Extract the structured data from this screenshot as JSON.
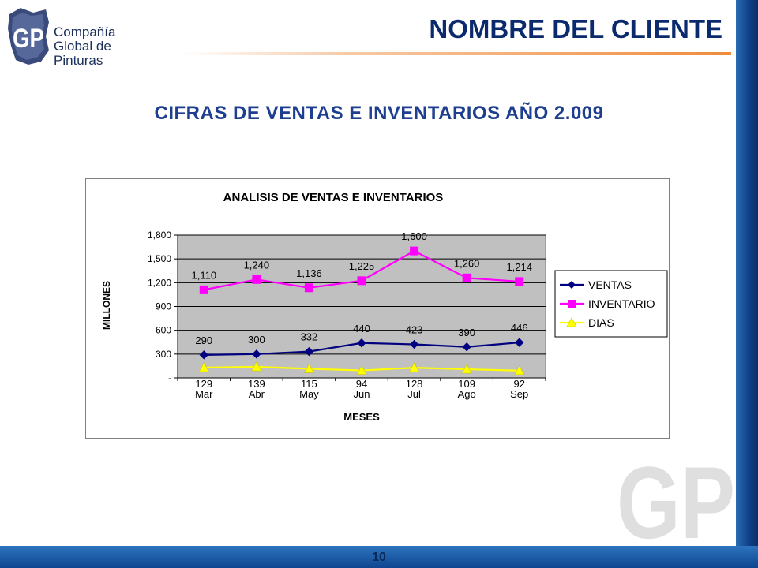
{
  "brand": {
    "logo_initials": "GP",
    "name_line1": "Compañía",
    "name_line2": "Global de Pinturas",
    "watermark_initials": "GP"
  },
  "header": {
    "title": "NOMBRE DEL CLIENTE"
  },
  "subtitle": "CIFRAS DE VENTAS E INVENTARIOS AÑO 2.009",
  "footer": {
    "page_number": "10"
  },
  "colors": {
    "ventas": "#000080",
    "inventario": "#FF00FF",
    "dias": "#FFFF00",
    "plot_bg": "#C0C0C0",
    "title_blue": "#0b2a6e",
    "accent_orange": "#f08c3c"
  },
  "chart_data": {
    "type": "line",
    "title": "ANALISIS DE VENTAS E INVENTARIOS",
    "xlabel": "MESES",
    "ylabel": "MILLONES",
    "categories": [
      "Mar",
      "Abr",
      "May",
      "Jun",
      "Jul",
      "Ago",
      "Sep"
    ],
    "ylim": [
      0,
      1800
    ],
    "yticks": [
      0,
      300,
      600,
      900,
      1200,
      1500,
      1800
    ],
    "ytick_labels": [
      "-",
      "300",
      "600",
      "900",
      "1,200",
      "1,500",
      "1,800"
    ],
    "grid": true,
    "legend_position": "right",
    "series": [
      {
        "name": "VENTAS",
        "marker": "diamond",
        "values": [
          290,
          300,
          332,
          440,
          423,
          390,
          446
        ],
        "labels": [
          "290",
          "300",
          "332",
          "440",
          "423",
          "390",
          "446"
        ]
      },
      {
        "name": "INVENTARIO",
        "marker": "square",
        "values": [
          1110,
          1240,
          1136,
          1225,
          1600,
          1260,
          1214
        ],
        "labels": [
          "1,110",
          "1,240",
          "1,136",
          "1,225",
          "1,600",
          "1,260",
          "1,214"
        ]
      },
      {
        "name": "DIAS",
        "marker": "triangle",
        "values": [
          129,
          139,
          115,
          94,
          128,
          109,
          92
        ],
        "labels": [
          "129",
          "139",
          "115",
          "94",
          "128",
          "109",
          "92"
        ]
      }
    ]
  }
}
